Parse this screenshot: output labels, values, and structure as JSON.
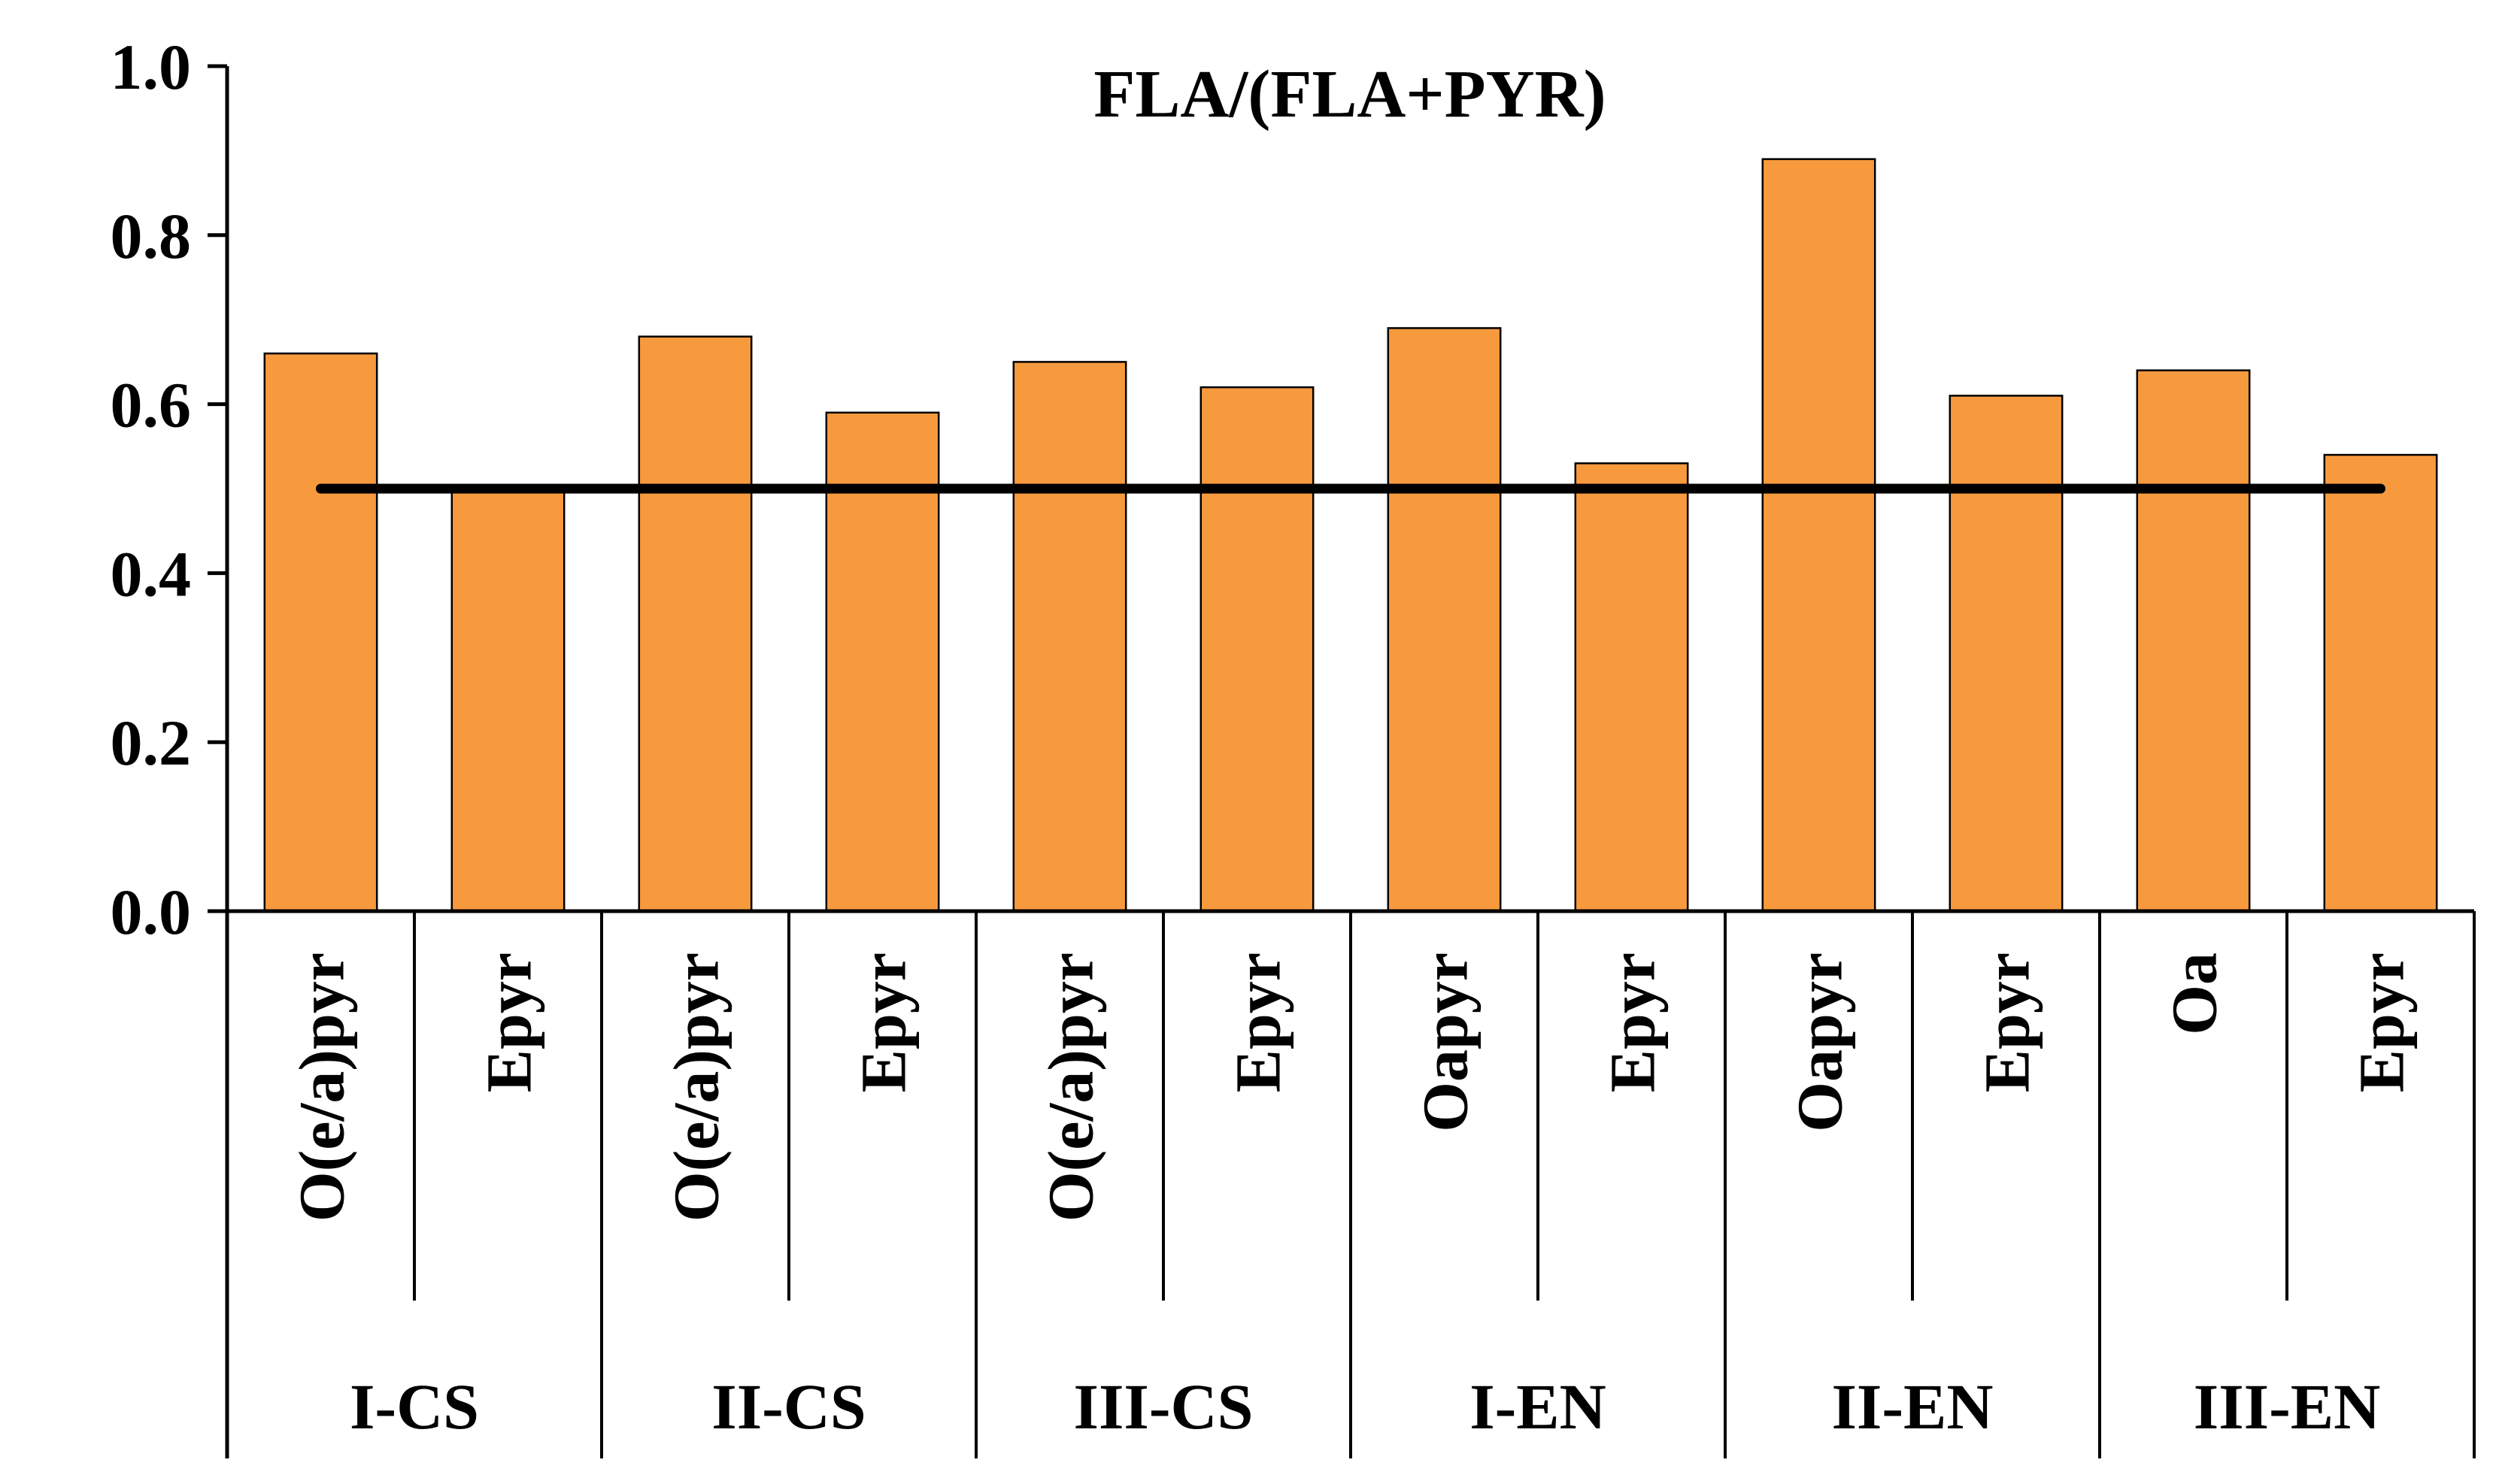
{
  "chart_data": {
    "type": "bar",
    "title": "FLA/(FLA+PYR)",
    "xlabel": "",
    "ylabel": "",
    "ylim": [
      0,
      1.0
    ],
    "yticks": [
      "0.0",
      "0.2",
      "0.4",
      "0.6",
      "0.8",
      "1.0"
    ],
    "grid": false,
    "legend": "none",
    "categories": [
      "O(e/a)pyr",
      "Epyr",
      "O(e/a)pyr",
      "Epyr",
      "O(e/a)pyr",
      "Epyr",
      "Oapyr",
      "Epyr",
      "Oapyr",
      "Epyr",
      "Oa",
      "Epyr"
    ],
    "groups": [
      {
        "label": "I-CS",
        "size": 2
      },
      {
        "label": "II-CS",
        "size": 2
      },
      {
        "label": "III-CS",
        "size": 2
      },
      {
        "label": "I-EN",
        "size": 2
      },
      {
        "label": "II-EN",
        "size": 2
      },
      {
        "label": "III-EN",
        "size": 2
      }
    ],
    "series": [
      {
        "values": [
          0.66,
          0.5,
          0.68,
          0.59,
          0.65,
          0.62,
          0.69,
          0.53,
          0.89,
          0.61,
          0.64,
          0.54
        ]
      }
    ],
    "reference_line": {
      "value": 0.5
    },
    "colors": {
      "bar": "#F79A3E",
      "bar_edge": "#000000",
      "line": "#000000",
      "axis": "#000000"
    }
  }
}
